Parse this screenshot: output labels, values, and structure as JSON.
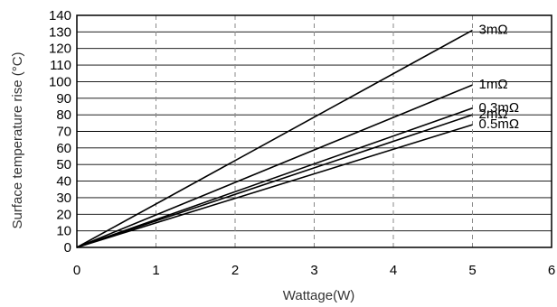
{
  "chart_data": {
    "type": "line",
    "xlabel": "Wattage(W)",
    "ylabel": "Surface temperature rise (°C)",
    "xlim": [
      0,
      6
    ],
    "ylim": [
      0,
      140
    ],
    "x_ticks": [
      "0",
      "1",
      "2",
      "3",
      "4",
      "5",
      "6"
    ],
    "y_ticks": [
      "0",
      "10",
      "20",
      "30",
      "40",
      "50",
      "60",
      "70",
      "80",
      "90",
      "100",
      "110",
      "120",
      "130",
      "140"
    ],
    "grid": {
      "horizontal": "solid",
      "vertical": "dashed"
    },
    "series": [
      {
        "name": "3mΩ",
        "x": [
          0,
          5
        ],
        "y": [
          0,
          131
        ]
      },
      {
        "name": "1mΩ",
        "x": [
          0,
          5
        ],
        "y": [
          0,
          98
        ]
      },
      {
        "name": "0.3mΩ",
        "x": [
          0,
          5
        ],
        "y": [
          0,
          84
        ]
      },
      {
        "name": "2mΩ",
        "x": [
          0,
          5
        ],
        "y": [
          0,
          80
        ]
      },
      {
        "name": "0.5mΩ",
        "x": [
          0,
          5
        ],
        "y": [
          0,
          74
        ]
      }
    ]
  }
}
